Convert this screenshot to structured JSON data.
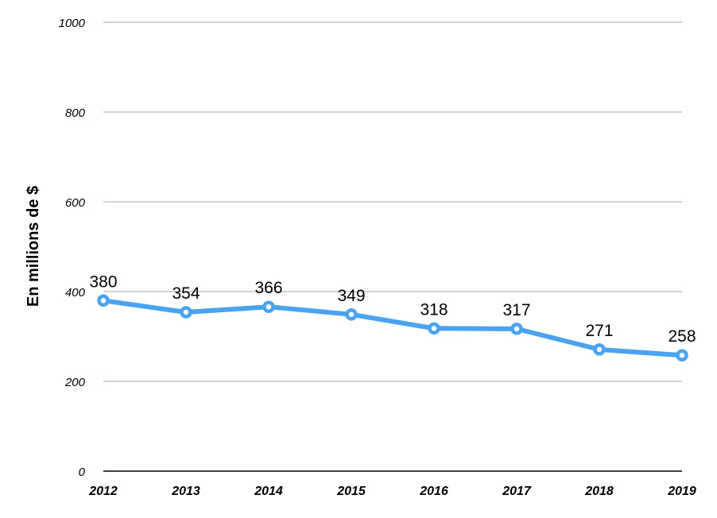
{
  "chart_data": {
    "type": "line",
    "title": "",
    "xlabel": "",
    "ylabel": "En millions de $",
    "categories": [
      "2012",
      "2013",
      "2014",
      "2015",
      "2016",
      "2017",
      "2018",
      "2019"
    ],
    "series": [
      {
        "values": [
          380,
          354,
          366,
          349,
          318,
          317,
          271,
          258
        ]
      }
    ],
    "data_labels": [
      "380",
      "354",
      "366",
      "349",
      "318",
      "317",
      "271",
      "258"
    ],
    "ylim": [
      0,
      1000
    ],
    "yticks": [
      "0",
      "200",
      "400",
      "600",
      "800",
      "1000"
    ],
    "grid": "horizontal",
    "legend": "none",
    "colors": {
      "series": "#4aa3f0",
      "grid": "#b7b7b7",
      "axis": "#000000"
    }
  }
}
